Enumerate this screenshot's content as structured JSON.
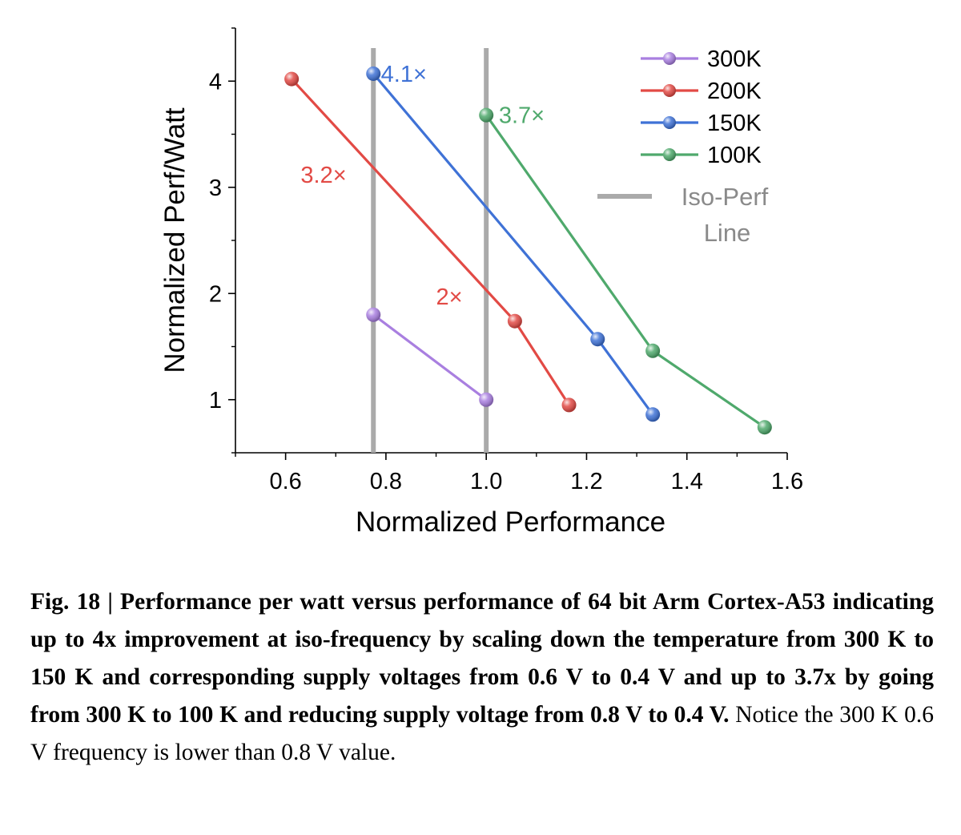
{
  "chart_data": {
    "type": "line",
    "xlabel": "Normalized Performance",
    "ylabel": "Normalized Perf/Watt",
    "xlim": [
      0.5,
      1.6
    ],
    "ylim": [
      0.5,
      4.5
    ],
    "xticks": [
      0.6,
      0.8,
      1.0,
      1.2,
      1.4,
      1.6
    ],
    "xtick_labels": [
      "0.6",
      "0.8",
      "1.0",
      "1.2",
      "1.4",
      "1.6"
    ],
    "yticks": [
      1,
      2,
      3,
      4
    ],
    "ytick_labels": [
      "1",
      "2",
      "3",
      "4"
    ],
    "grid": false,
    "legend_position": "top-right",
    "series": [
      {
        "name": "300K",
        "color": "#a97fe0",
        "x": [
          0.775,
          1.0
        ],
        "y": [
          1.8,
          1.0
        ]
      },
      {
        "name": "200K",
        "color": "#e24a45",
        "x": [
          0.612,
          1.057,
          1.165
        ],
        "y": [
          4.02,
          1.74,
          0.95
        ]
      },
      {
        "name": "150K",
        "color": "#3f72d6",
        "x": [
          0.775,
          1.222,
          1.332
        ],
        "y": [
          4.07,
          1.57,
          0.86
        ]
      },
      {
        "name": "100K",
        "color": "#4fa96c",
        "x": [
          1.0,
          1.332,
          1.555
        ],
        "y": [
          3.68,
          1.46,
          0.74
        ]
      }
    ],
    "reference_lines": {
      "name": "Iso-Perf Line",
      "legend_lines": [
        "Iso-Perf",
        "Line"
      ],
      "color": "#aaaaaa",
      "x": [
        0.775,
        1.0
      ]
    },
    "annotations": [
      {
        "text": "4.1×",
        "color": "#3f72d6",
        "x": 0.79,
        "y": 4.07
      },
      {
        "text": "3.7×",
        "color": "#4fa96c",
        "x": 1.025,
        "y": 3.68
      },
      {
        "text": "3.2×",
        "color": "#e24a45",
        "x": 0.63,
        "y": 3.12
      },
      {
        "text": "2×",
        "color": "#e24a45",
        "x": 0.9,
        "y": 1.97
      }
    ]
  },
  "caption": {
    "bold": "Fig. 18 | Performance per watt versus performance of 64 bit Arm Cortex-A53 indicating up to 4x improvement at iso-frequency by scaling down the temperature from 300 K to 150 K and corresponding supply voltages from 0.6 V to 0.4 V and up to 3.7x by going from 300 K to 100 K and reducing supply voltage from 0.8 V to 0.4 V.",
    "normal": " Notice the 300 K 0.6 V frequency is lower than 0.8 V value."
  }
}
